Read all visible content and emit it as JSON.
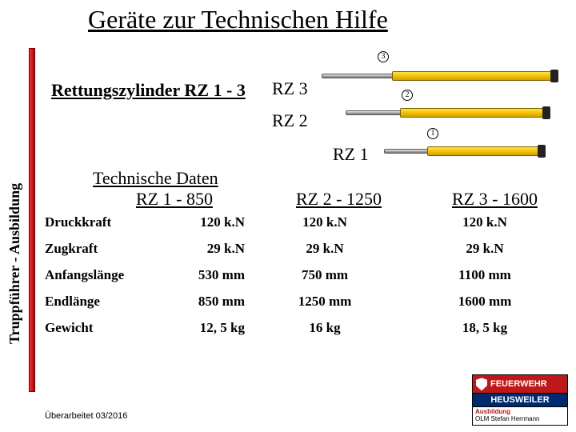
{
  "title": "Geräte zur Technischen Hilfe",
  "sidebar_label": "Truppführer - Ausbildung",
  "subtitle": "Rettungszylinder RZ 1 - 3",
  "cylinders": {
    "rz3": "RZ 3",
    "rz2": "RZ 2",
    "rz1": "RZ 1"
  },
  "tech_header": {
    "line1": "Technische Daten",
    "col1": "RZ 1 - 850",
    "col2": "RZ 2 - 1250",
    "col3": "RZ 3 - 1600"
  },
  "rows": [
    {
      "label": "Druckkraft",
      "c1": "120 k.N",
      "c2": "120 k.N",
      "c3": "120 k.N"
    },
    {
      "label": "Zugkraft",
      "c1": "29 k.N",
      "c2": "29 k.N",
      "c3": "29 k.N"
    },
    {
      "label": "Anfangslänge",
      "c1": "530 mm",
      "c2": "750 mm",
      "c3": "1100 mm"
    },
    {
      "label": "Endlänge",
      "c1": "850 mm",
      "c2": "1250 mm",
      "c3": "1600 mm"
    },
    {
      "label": "Gewicht",
      "c1": "12, 5 kg",
      "c2": "16 kg",
      "c3": "18, 5 kg"
    }
  ],
  "footer": "Überarbeitet 03/2016",
  "logo": {
    "line1": "FEUERWEHR",
    "line2": "HEUSWEILER",
    "line3a": "Ausbildung",
    "line3b": "OLM Stefan Herrmann"
  },
  "colors": {
    "red": "#c01818",
    "blue": "#002a6e",
    "barrel": "#f3c200",
    "redbar": "#d01010"
  }
}
